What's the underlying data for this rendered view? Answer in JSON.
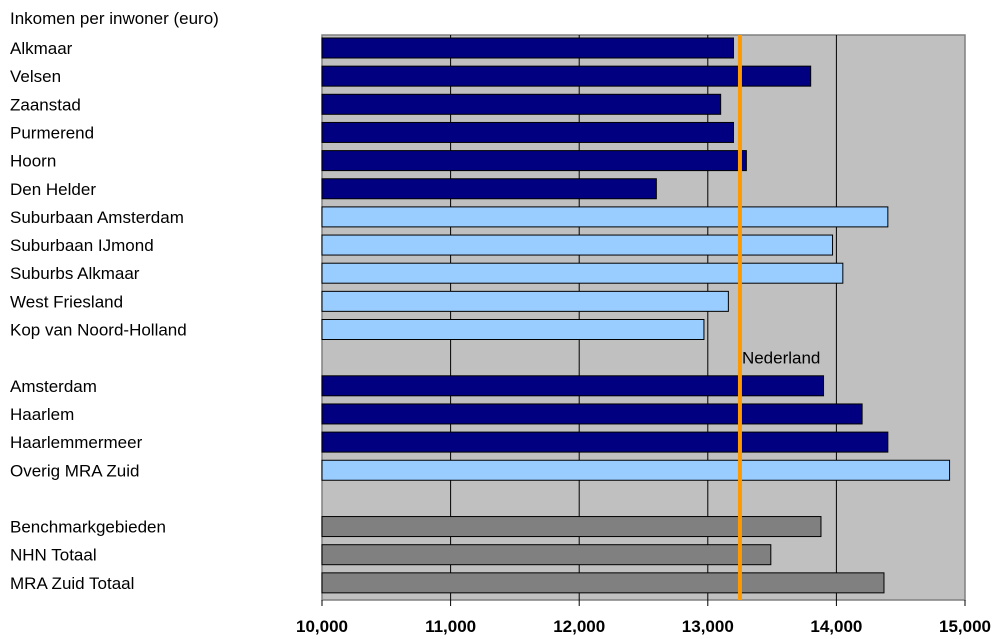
{
  "chart_data": {
    "type": "bar",
    "orientation": "horizontal",
    "title": "Inkomen per inwoner (euro)",
    "categories": [
      "Alkmaar",
      "Velsen",
      "Zaanstad",
      "Purmerend",
      "Hoorn",
      "Den Helder",
      "Suburbaan Amsterdam",
      "Suburbaan IJmond",
      "Suburbs Alkmaar",
      "West Friesland",
      "Kop van Noord-Holland",
      "",
      "Amsterdam",
      "Haarlem",
      "Haarlemmermeer",
      "Overig MRA Zuid",
      "",
      "Benchmarkgebieden",
      "NHN Totaal",
      "MRA Zuid Totaal"
    ],
    "values": [
      13200,
      13800,
      13100,
      13200,
      13300,
      12600,
      14400,
      13970,
      14050,
      13160,
      12970,
      null,
      13900,
      14200,
      14400,
      14880,
      null,
      13880,
      13490,
      14370
    ],
    "bar_colors": [
      "#000080",
      "#000080",
      "#000080",
      "#000080",
      "#000080",
      "#000080",
      "#99CCFF",
      "#99CCFF",
      "#99CCFF",
      "#99CCFF",
      "#99CCFF",
      null,
      "#000080",
      "#000080",
      "#000080",
      "#99CCFF",
      null,
      "#808080",
      "#808080",
      "#808080"
    ],
    "xlim": [
      10000,
      15000
    ],
    "xticks": [
      10000,
      11000,
      12000,
      13000,
      14000,
      15000
    ],
    "xtick_labels": [
      "10,000",
      "11,000",
      "12,000",
      "13,000",
      "14,000",
      "15,000"
    ],
    "reference_line": {
      "label": "Nederland",
      "value": 13250,
      "color": "#FF9900"
    },
    "grid": true,
    "legend": "none",
    "plot_background": "#C0C0C0"
  }
}
